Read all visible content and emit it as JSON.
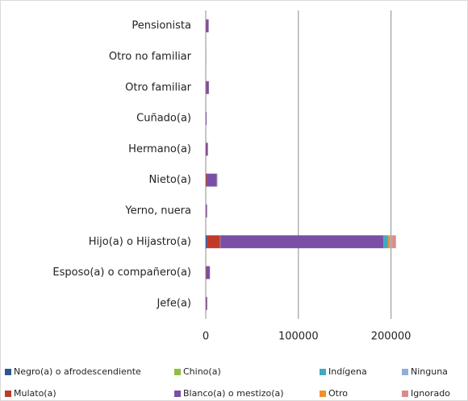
{
  "chart_data": {
    "type": "bar",
    "orientation": "horizontal",
    "stacked": true,
    "categories": [
      "Jefe(a)",
      "Esposo(a) o compañero(a)",
      "Hijo(a) o Hijastro(a)",
      "Yerno, nuera",
      "Nieto(a)",
      "Hermano(a)",
      "Cuñado(a)",
      "Otro familiar",
      "Otro no familiar",
      "Pensionista"
    ],
    "series": [
      {
        "name": "Negro(a) o afrodescendiente",
        "color": "#2f5597",
        "values": [
          100,
          300,
          1500,
          100,
          500,
          100,
          50,
          200,
          10,
          200
        ]
      },
      {
        "name": "Mulato(a)",
        "color": "#c0392b",
        "values": [
          200,
          500,
          14000,
          200,
          1200,
          300,
          100,
          300,
          20,
          300
        ]
      },
      {
        "name": "Chino(a)",
        "color": "#8cbf3f",
        "values": [
          10,
          20,
          300,
          10,
          50,
          10,
          5,
          10,
          0,
          10
        ]
      },
      {
        "name": "Blanco(a) o mestizo(a)",
        "color": "#7b4fa6",
        "values": [
          1200,
          3500,
          176000,
          1000,
          10000,
          1800,
          700,
          2800,
          150,
          2500
        ]
      },
      {
        "name": "Indígena",
        "color": "#3fa9c2",
        "values": [
          50,
          100,
          5000,
          50,
          300,
          60,
          30,
          80,
          5,
          80
        ]
      },
      {
        "name": "Otro",
        "color": "#f0902e",
        "values": [
          20,
          50,
          2500,
          20,
          150,
          30,
          10,
          40,
          2,
          40
        ]
      },
      {
        "name": "Ninguna",
        "color": "#93aed6",
        "values": [
          30,
          80,
          2000,
          30,
          200,
          40,
          15,
          60,
          3,
          60
        ]
      },
      {
        "name": "Ignorado",
        "color": "#d98b8b",
        "values": [
          40,
          100,
          4000,
          40,
          300,
          60,
          20,
          80,
          5,
          80
        ]
      }
    ],
    "xlim": [
      0,
      250000
    ],
    "xticks": [
      0,
      100000,
      200000
    ],
    "grid": true,
    "legend": "bottom"
  }
}
